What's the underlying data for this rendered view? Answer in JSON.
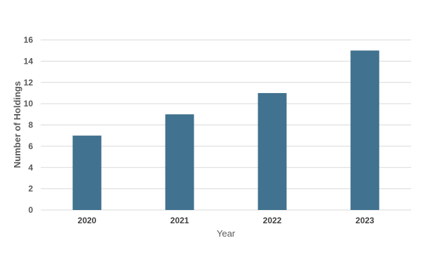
{
  "chart_data": {
    "type": "bar",
    "title": "",
    "xlabel": "Year",
    "ylabel": "Number of Holdings",
    "categories": [
      "2020",
      "2021",
      "2022",
      "2023"
    ],
    "values": [
      7,
      9,
      11,
      15
    ],
    "ylim": [
      0,
      16
    ],
    "yticks": [
      "0",
      "2",
      "4",
      "6",
      "8",
      "10",
      "12",
      "14",
      "16"
    ],
    "grid": true,
    "legend": "none",
    "bar_color": "#41728f"
  }
}
